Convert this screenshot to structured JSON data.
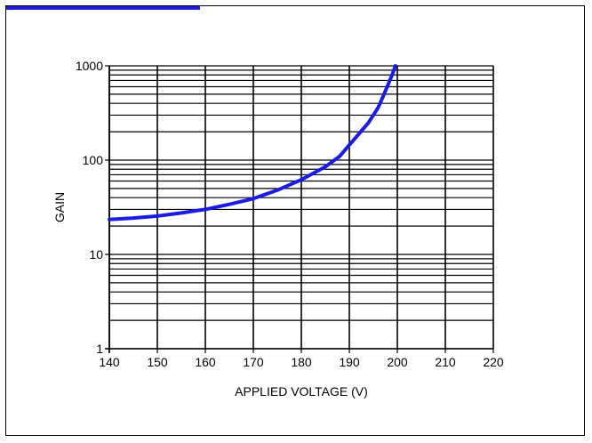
{
  "colors": {
    "accent": "#1f1fd6",
    "curve": "#1b1be6",
    "grid": "#000000",
    "border": "#000000"
  },
  "chart_data": {
    "type": "line",
    "title": "",
    "xlabel": "APPLIED VOLTAGE (V)",
    "ylabel": "GAIN",
    "x_scale": "linear",
    "y_scale": "log",
    "xlim": [
      140,
      220
    ],
    "ylim": [
      1,
      1000
    ],
    "x_ticks": [
      "140",
      "150",
      "160",
      "170",
      "180",
      "190",
      "200",
      "210",
      "220"
    ],
    "y_ticks": [
      "1",
      "10",
      "100",
      "1000"
    ],
    "grid": true,
    "series": [
      {
        "x": [
          140,
          145,
          150,
          155,
          160,
          165,
          170,
          175,
          180,
          185,
          188,
          190,
          192,
          194,
          196,
          197,
          198,
          199,
          199.6
        ],
        "y": [
          23.5,
          24.3,
          25.5,
          27.5,
          30,
          34,
          39,
          48,
          62,
          85,
          110,
          145,
          190,
          250,
          360,
          470,
          620,
          820,
          1000
        ]
      }
    ]
  }
}
